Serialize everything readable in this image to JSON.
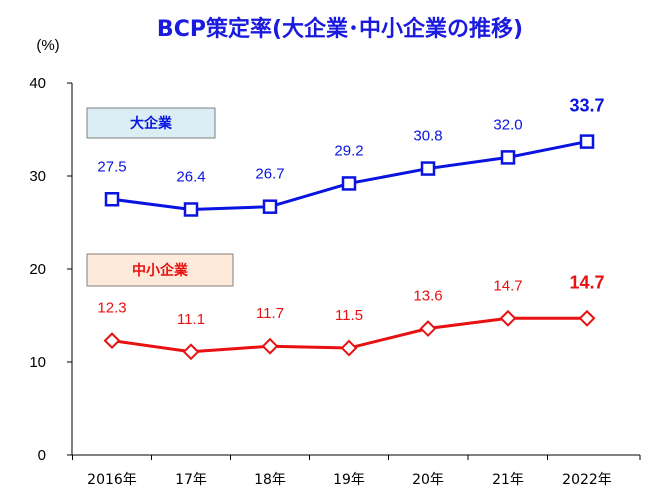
{
  "chart_data": {
    "type": "line",
    "title": "BCP策定率(大企業･中小企業の推移)",
    "ylabel": "(%)",
    "xlabel": "",
    "ylim": [
      0,
      40
    ],
    "yticks": [
      "0",
      "10",
      "20",
      "30",
      "40"
    ],
    "categories": [
      "2016年",
      "17年",
      "18年",
      "19年",
      "20年",
      "21年",
      "2022年"
    ],
    "grid": false,
    "series": [
      {
        "name": "大企業",
        "values": [
          27.5,
          26.4,
          26.7,
          29.2,
          30.8,
          32.0,
          33.7
        ],
        "labels": [
          "27.5",
          "26.4",
          "26.7",
          "29.2",
          "30.8",
          "32.0",
          "33.7"
        ],
        "color": "#0A14E0",
        "marker": "square",
        "legend_bg": "#DAEEF3"
      },
      {
        "name": "中小企業",
        "values": [
          12.3,
          11.1,
          11.7,
          11.5,
          13.6,
          14.7,
          14.7
        ],
        "labels": [
          "12.3",
          "11.1",
          "11.7",
          "11.5",
          "13.6",
          "14.7",
          "14.7"
        ],
        "color": "#E81010",
        "marker": "diamond",
        "legend_bg": "#FDEADA"
      }
    ]
  }
}
